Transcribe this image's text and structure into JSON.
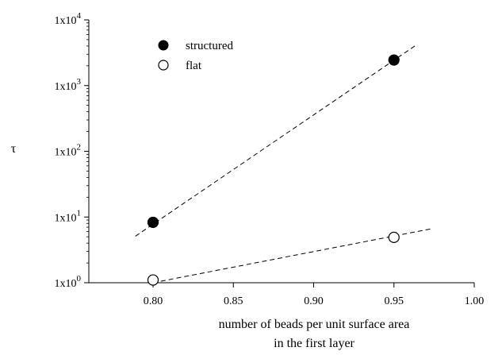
{
  "chart_data": {
    "type": "scatter",
    "xlabel": [
      "number of beads per unit surface area",
      "in the first layer"
    ],
    "ylabel": "τ",
    "xlim": [
      0.76,
      1.0
    ],
    "ylim": [
      1,
      10000
    ],
    "yscale": "log",
    "x_ticks": [
      0.8,
      0.85,
      0.9,
      0.95,
      1.0
    ],
    "x_tick_labels": [
      "0.80",
      "0.85",
      "0.90",
      "0.95",
      "1.00"
    ],
    "y_ticks": [
      1,
      10,
      100,
      1000,
      10000
    ],
    "y_tick_labels": [
      {
        "base": "1x10",
        "exp": "0"
      },
      {
        "base": "1x10",
        "exp": "1"
      },
      {
        "base": "1x10",
        "exp": "2"
      },
      {
        "base": "1x10",
        "exp": "3"
      },
      {
        "base": "1x10",
        "exp": "4"
      }
    ],
    "grid": false,
    "legend_position": "top-left",
    "series": [
      {
        "name": "structured",
        "marker": "filled-circle",
        "color": "#000000",
        "x": [
          0.8,
          0.95
        ],
        "y": [
          8.3,
          2450
        ],
        "fit_line": {
          "x": [
            0.789,
            0.963
          ],
          "y": [
            5.1,
            4000
          ]
        }
      },
      {
        "name": "flat",
        "marker": "open-circle",
        "color": "#000000",
        "x": [
          0.8,
          0.95
        ],
        "y": [
          1.1,
          4.9
        ],
        "fit_line": {
          "x": [
            0.8,
            0.973
          ],
          "y": [
            1.0,
            6.6
          ]
        }
      }
    ]
  }
}
